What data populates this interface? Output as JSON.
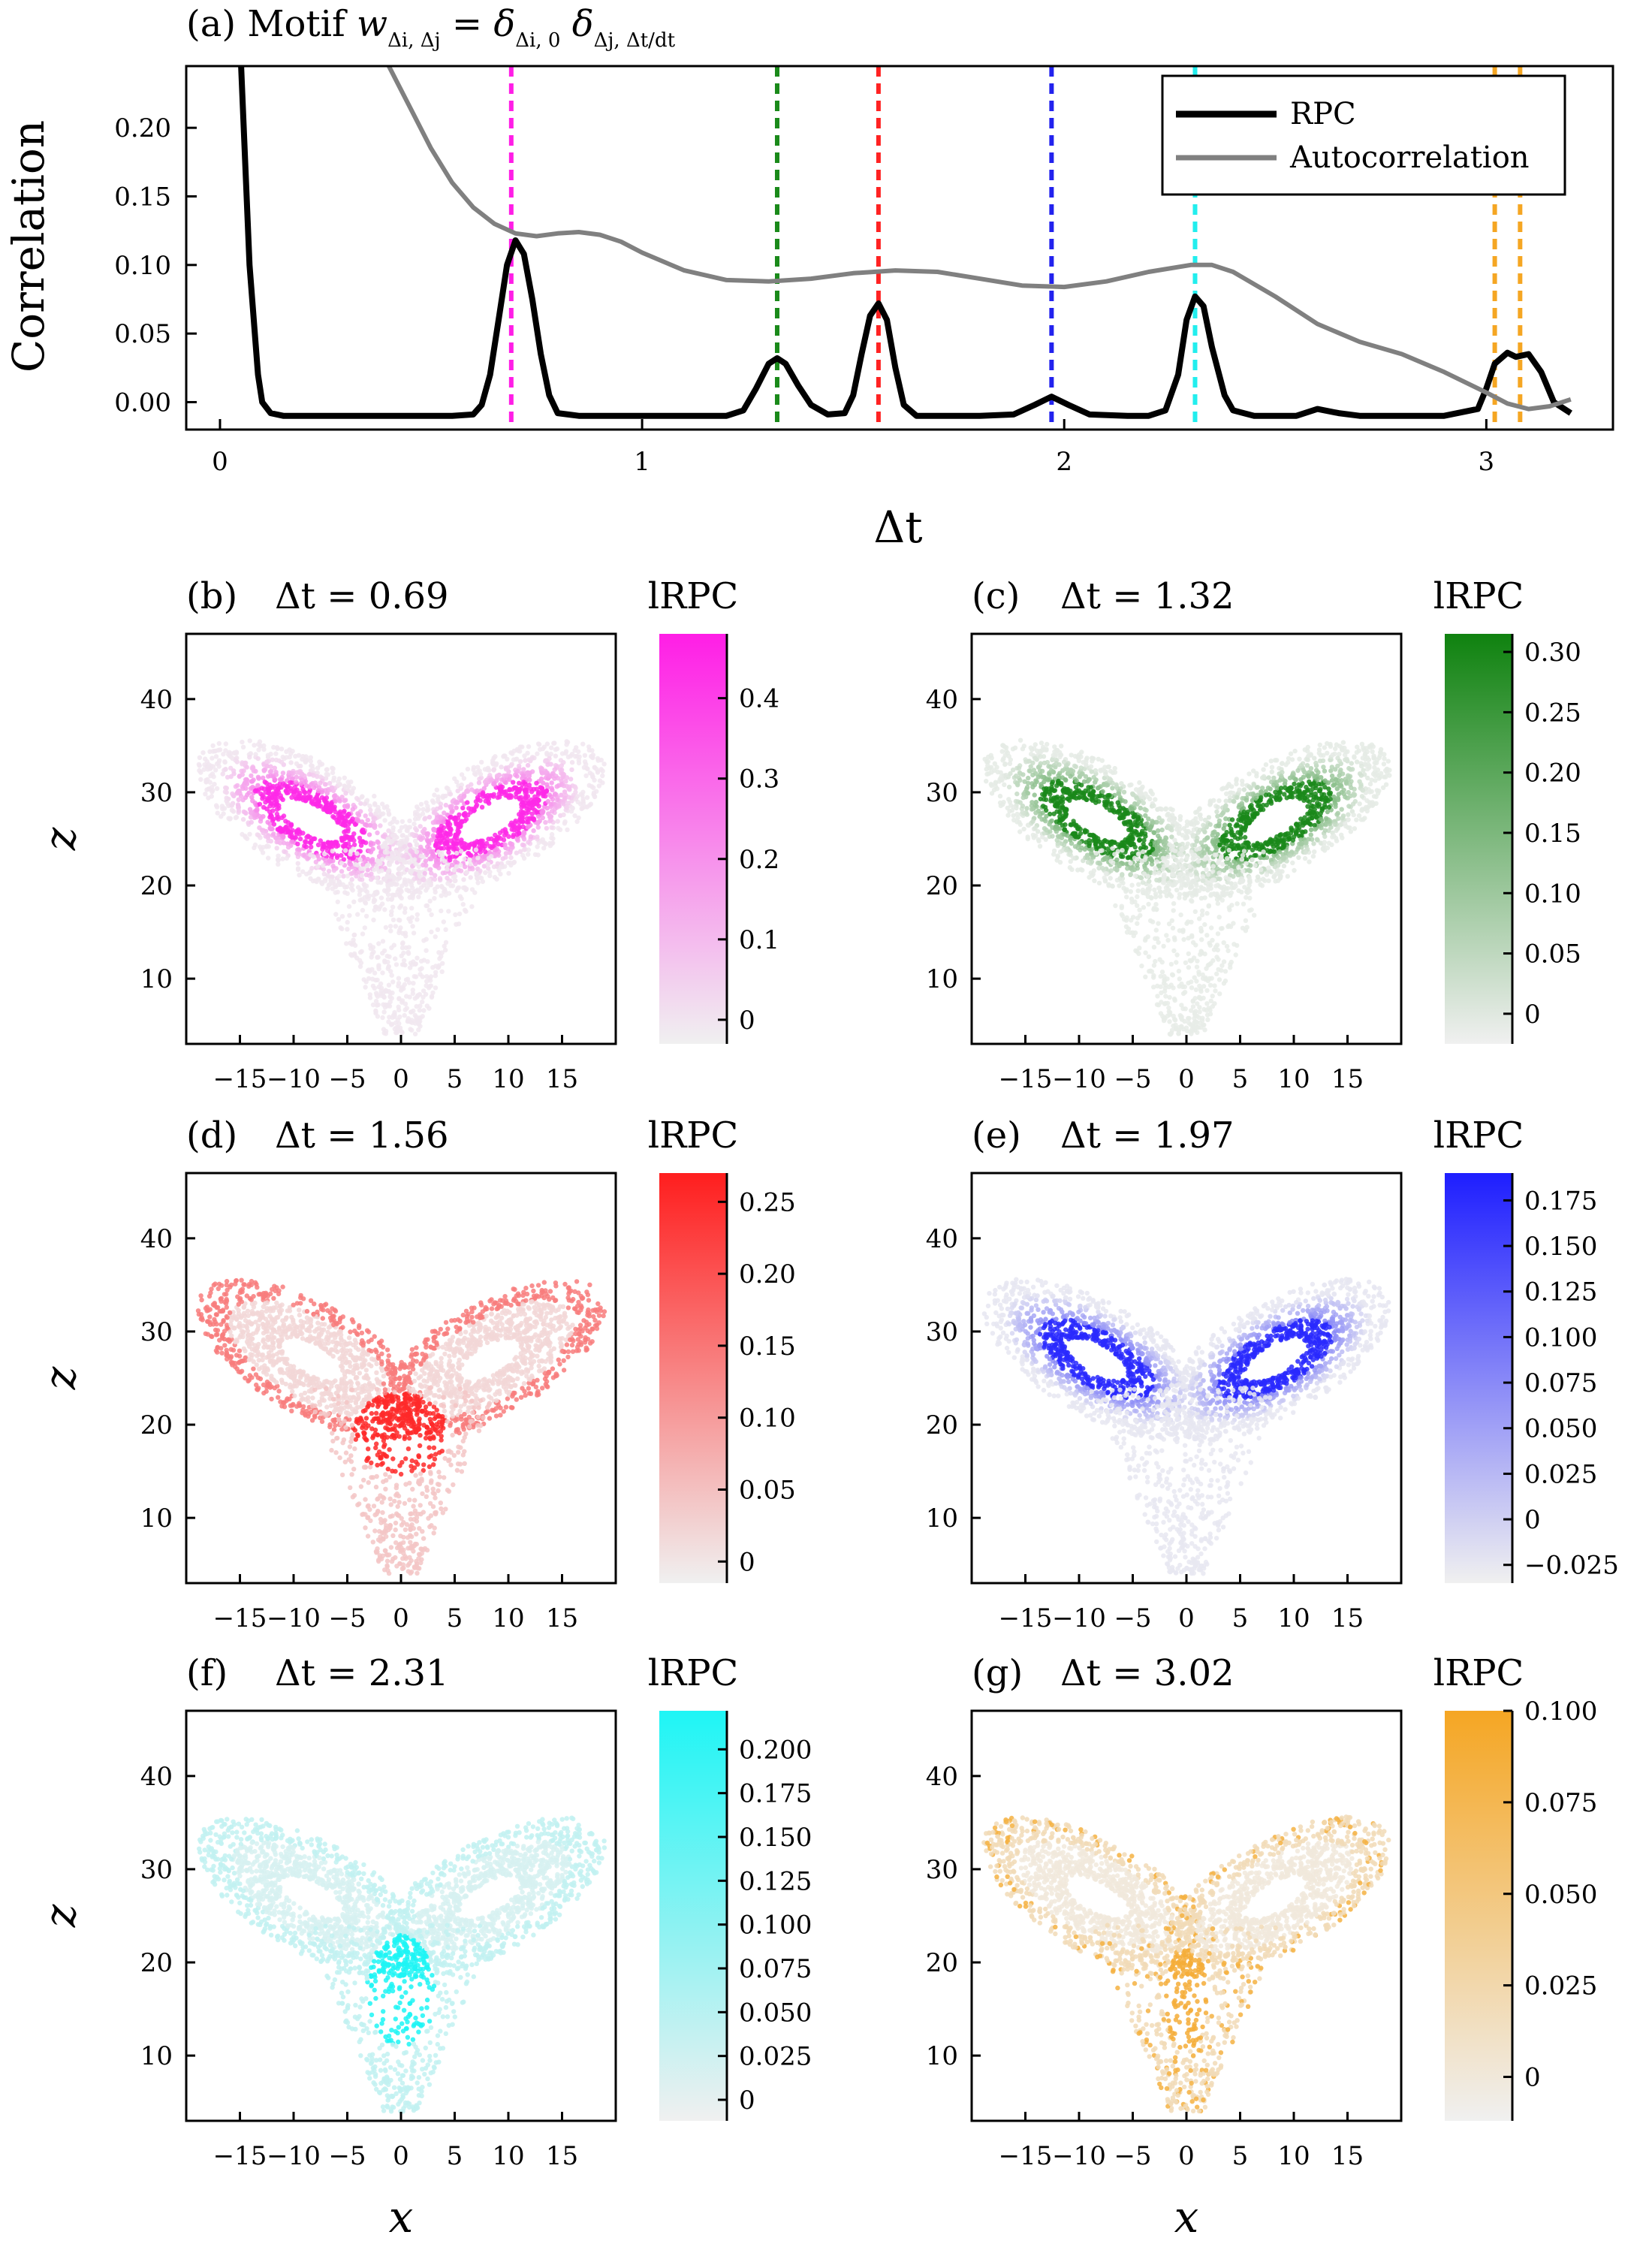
{
  "chart_data": [
    {
      "panel": "(a)",
      "type": "line",
      "title": "(a) Motif w_{Δi,Δj} = δ_{Δi,0} δ_{Δj,Δt/dt}",
      "xlabel": "Δt",
      "ylabel": "Correlation",
      "xlim": [
        -0.08,
        3.3
      ],
      "ylim": [
        -0.02,
        0.245
      ],
      "xticks": [
        "0",
        "1",
        "2",
        "3"
      ],
      "xtick_values": [
        0,
        1,
        2,
        3
      ],
      "yticks": [
        "0.00",
        "0.05",
        "0.10",
        "0.15",
        "0.20"
      ],
      "ytick_values": [
        0.0,
        0.05,
        0.1,
        0.15,
        0.2
      ],
      "legend": {
        "placement": "top-right",
        "entries": [
          "RPC",
          "Autocorrelation"
        ]
      },
      "series": [
        {
          "name": "RPC",
          "color": "#000000",
          "x": [
            0.05,
            0.07,
            0.09,
            0.1,
            0.12,
            0.15,
            0.2,
            0.3,
            0.4,
            0.5,
            0.55,
            0.6,
            0.62,
            0.64,
            0.66,
            0.68,
            0.7,
            0.72,
            0.74,
            0.76,
            0.78,
            0.8,
            0.85,
            0.9,
            1.0,
            1.1,
            1.2,
            1.24,
            1.27,
            1.3,
            1.32,
            1.34,
            1.37,
            1.4,
            1.44,
            1.48,
            1.5,
            1.52,
            1.54,
            1.56,
            1.58,
            1.6,
            1.62,
            1.65,
            1.7,
            1.8,
            1.88,
            1.93,
            1.97,
            2.01,
            2.06,
            2.15,
            2.2,
            2.24,
            2.27,
            2.29,
            2.31,
            2.33,
            2.35,
            2.38,
            2.4,
            2.45,
            2.5,
            2.55,
            2.6,
            2.65,
            2.7,
            2.8,
            2.9,
            2.98,
            3.0,
            3.02,
            3.05,
            3.07,
            3.1,
            3.13,
            3.16,
            3.2
          ],
          "y": [
            0.245,
            0.1,
            0.02,
            0.0,
            -0.008,
            -0.01,
            -0.01,
            -0.01,
            -0.01,
            -0.01,
            -0.01,
            -0.009,
            -0.002,
            0.02,
            0.06,
            0.1,
            0.118,
            0.108,
            0.075,
            0.035,
            0.005,
            -0.008,
            -0.01,
            -0.01,
            -0.01,
            -0.01,
            -0.01,
            -0.006,
            0.01,
            0.028,
            0.032,
            0.028,
            0.012,
            -0.002,
            -0.009,
            -0.008,
            0.005,
            0.035,
            0.063,
            0.072,
            0.06,
            0.025,
            -0.002,
            -0.01,
            -0.01,
            -0.01,
            -0.009,
            -0.002,
            0.004,
            -0.002,
            -0.009,
            -0.01,
            -0.01,
            -0.006,
            0.02,
            0.06,
            0.077,
            0.07,
            0.04,
            0.005,
            -0.006,
            -0.01,
            -0.01,
            -0.01,
            -0.005,
            -0.008,
            -0.01,
            -0.01,
            -0.01,
            -0.005,
            0.01,
            0.028,
            0.036,
            0.033,
            0.035,
            0.022,
            0.0,
            -0.008
          ]
        },
        {
          "name": "Autocorrelation",
          "color": "#808080",
          "x": [
            0.4,
            0.45,
            0.5,
            0.55,
            0.6,
            0.65,
            0.7,
            0.75,
            0.8,
            0.85,
            0.9,
            0.95,
            1.0,
            1.1,
            1.2,
            1.3,
            1.4,
            1.5,
            1.6,
            1.7,
            1.8,
            1.9,
            2.0,
            2.1,
            2.2,
            2.3,
            2.35,
            2.4,
            2.5,
            2.6,
            2.7,
            2.8,
            2.9,
            3.0,
            3.05,
            3.1,
            3.15,
            3.2
          ],
          "y": [
            0.245,
            0.215,
            0.185,
            0.16,
            0.142,
            0.13,
            0.123,
            0.121,
            0.123,
            0.124,
            0.122,
            0.117,
            0.109,
            0.096,
            0.089,
            0.088,
            0.09,
            0.094,
            0.096,
            0.095,
            0.09,
            0.085,
            0.084,
            0.088,
            0.095,
            0.1,
            0.1,
            0.095,
            0.077,
            0.057,
            0.044,
            0.035,
            0.022,
            0.007,
            -0.001,
            -0.005,
            -0.003,
            0.002
          ]
        }
      ],
      "vlines": [
        {
          "x": 0.69,
          "color": "#ff1ee6"
        },
        {
          "x": 1.32,
          "color": "#1a8a1a"
        },
        {
          "x": 1.56,
          "color": "#ff2222"
        },
        {
          "x": 1.97,
          "color": "#2222ee"
        },
        {
          "x": 2.31,
          "color": "#22eeee"
        },
        {
          "x": 3.02,
          "color": "#f5a623"
        },
        {
          "x": 3.08,
          "color": "#f5a623"
        }
      ]
    },
    {
      "panel": "(b)",
      "type": "scatter",
      "title": "(b)",
      "dt_label": "Δt = 0.69",
      "xlabel": "",
      "ylabel": "z",
      "xticks": [
        "−15",
        "−10",
        "−5",
        "0",
        "5",
        "10",
        "15"
      ],
      "yticks": [
        "10",
        "20",
        "30",
        "40"
      ],
      "colorbar": {
        "label": "lRPC",
        "color": "#ff1ee6",
        "range": [
          -0.03,
          0.48
        ],
        "ticks": [
          "0",
          "0.1",
          "0.2",
          "0.3",
          "0.4"
        ],
        "tick_values": [
          0,
          0.1,
          0.2,
          0.3,
          0.4
        ]
      },
      "pattern": "inner-lobes"
    },
    {
      "panel": "(c)",
      "type": "scatter",
      "title": "(c)",
      "dt_label": "Δt = 1.32",
      "xlabel": "",
      "ylabel": "",
      "xticks": [
        "−15",
        "−10",
        "−5",
        "0",
        "5",
        "10",
        "15"
      ],
      "yticks": [
        "10",
        "20",
        "30",
        "40"
      ],
      "colorbar": {
        "label": "lRPC",
        "color": "#0f820f",
        "range": [
          -0.025,
          0.315
        ],
        "ticks": [
          "0",
          "0.05",
          "0.10",
          "0.15",
          "0.20",
          "0.25",
          "0.30"
        ],
        "tick_values": [
          0,
          0.05,
          0.1,
          0.15,
          0.2,
          0.25,
          0.3
        ]
      },
      "pattern": "inner-lobes"
    },
    {
      "panel": "(d)",
      "type": "scatter",
      "title": "(d)",
      "dt_label": "Δt = 1.56",
      "xlabel": "",
      "ylabel": "z",
      "xticks": [
        "−15",
        "−10",
        "−5",
        "0",
        "5",
        "10",
        "15"
      ],
      "yticks": [
        "10",
        "20",
        "30",
        "40"
      ],
      "colorbar": {
        "label": "lRPC",
        "color": "#ff1e1e",
        "range": [
          -0.015,
          0.27
        ],
        "ticks": [
          "0",
          "0.05",
          "0.10",
          "0.15",
          "0.20",
          "0.25"
        ],
        "tick_values": [
          0,
          0.05,
          0.1,
          0.15,
          0.2,
          0.25
        ]
      },
      "pattern": "outer-lobes-center"
    },
    {
      "panel": "(e)",
      "type": "scatter",
      "title": "(e)",
      "dt_label": "Δt = 1.97",
      "xlabel": "",
      "ylabel": "",
      "xticks": [
        "−15",
        "−10",
        "−5",
        "0",
        "5",
        "10",
        "15"
      ],
      "yticks": [
        "10",
        "20",
        "30",
        "40"
      ],
      "colorbar": {
        "label": "lRPC",
        "color": "#1e1eff",
        "range": [
          -0.035,
          0.19
        ],
        "ticks": [
          "−0.025",
          "0",
          "0.025",
          "0.050",
          "0.075",
          "0.100",
          "0.125",
          "0.150",
          "0.175"
        ],
        "tick_values": [
          -0.025,
          0,
          0.025,
          0.05,
          0.075,
          0.1,
          0.125,
          0.15,
          0.175
        ]
      },
      "pattern": "inner-lobes"
    },
    {
      "panel": "(f)",
      "type": "scatter",
      "title": "(f)",
      "dt_label": "Δt = 2.31",
      "xlabel": "x",
      "ylabel": "z",
      "xticks": [
        "−15",
        "−10",
        "−5",
        "0",
        "5",
        "10",
        "15"
      ],
      "yticks": [
        "10",
        "20",
        "30",
        "40"
      ],
      "colorbar": {
        "label": "lRPC",
        "color": "#1ef5f5",
        "range": [
          -0.012,
          0.222
        ],
        "ticks": [
          "0",
          "0.025",
          "0.050",
          "0.075",
          "0.100",
          "0.125",
          "0.150",
          "0.175",
          "0.200"
        ],
        "tick_values": [
          0,
          0.025,
          0.05,
          0.075,
          0.1,
          0.125,
          0.15,
          0.175,
          0.2
        ]
      },
      "pattern": "center-cluster"
    },
    {
      "panel": "(g)",
      "type": "scatter",
      "title": "(g)",
      "dt_label": "Δt = 3.02",
      "xlabel": "x",
      "ylabel": "",
      "xticks": [
        "−15",
        "−10",
        "−5",
        "0",
        "5",
        "10",
        "15"
      ],
      "yticks": [
        "10",
        "20",
        "30",
        "40"
      ],
      "colorbar": {
        "label": "lRPC",
        "color": "#f5a623",
        "range": [
          -0.012,
          0.1
        ],
        "ticks": [
          "0",
          "0.025",
          "0.050",
          "0.075",
          "0.100"
        ],
        "tick_values": [
          0,
          0.025,
          0.05,
          0.075,
          0.1
        ]
      },
      "pattern": "outer-orbit"
    }
  ],
  "scatter_axes": {
    "xlim": [
      -20,
      20
    ],
    "ylim": [
      3,
      47
    ],
    "xtick_values": [
      -15,
      -10,
      -5,
      0,
      5,
      10,
      15
    ],
    "ytick_values": [
      10,
      20,
      30,
      40
    ]
  }
}
